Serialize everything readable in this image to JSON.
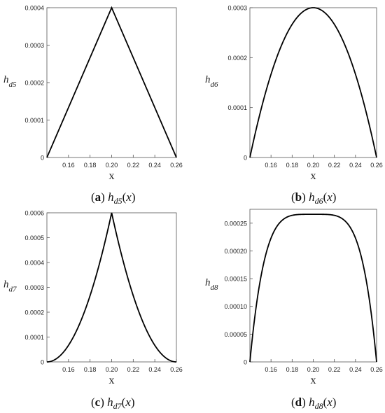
{
  "chart_data": [
    {
      "type": "line",
      "panel_letter": "a",
      "caption": {
        "letter": "(a)",
        "func": "h",
        "sub": "d5",
        "arg": "(x)"
      },
      "ylabel": {
        "main": "h",
        "sub": "d5"
      },
      "xlabel": "x",
      "xlim": [
        0.14,
        0.26
      ],
      "ylim": [
        0,
        0.0004
      ],
      "xticks": [
        "0.16",
        "0.18",
        "0.20",
        "0.22",
        "0.24",
        "0.26"
      ],
      "yticks": [
        "0",
        "0.0001",
        "0.0002",
        "0.0003",
        "0.0004"
      ],
      "shape": "triangle",
      "peak": 0.0004,
      "series": [
        {
          "x": [
            0.14,
            0.2,
            0.26
          ],
          "y": [
            0,
            0.0004,
            0
          ]
        }
      ]
    },
    {
      "type": "line",
      "panel_letter": "b",
      "caption": {
        "letter": "(b)",
        "func": "h",
        "sub": "d6",
        "arg": "(x)"
      },
      "ylabel": {
        "main": "h",
        "sub": "d6"
      },
      "xlabel": "x",
      "xlim": [
        0.14,
        0.26
      ],
      "ylim": [
        0,
        0.0003
      ],
      "xticks": [
        "0.16",
        "0.18",
        "0.20",
        "0.22",
        "0.24",
        "0.26"
      ],
      "yticks": [
        "0",
        "0.0001",
        "0.0002",
        "0.0003"
      ],
      "shape": "parabola",
      "peak": 0.0003,
      "series": [
        {
          "x": [
            0.14,
            0.17,
            0.2,
            0.23,
            0.26
          ],
          "y": [
            0,
            0.000225,
            0.0003,
            0.000225,
            0
          ]
        }
      ]
    },
    {
      "type": "line",
      "panel_letter": "c",
      "caption": {
        "letter": "(c)",
        "func": "h",
        "sub": "d7",
        "arg": "(x)"
      },
      "ylabel": {
        "main": "h",
        "sub": "d7"
      },
      "xlabel": "x",
      "xlim": [
        0.14,
        0.26
      ],
      "ylim": [
        0,
        0.0006
      ],
      "xticks": [
        "0.16",
        "0.18",
        "0.20",
        "0.22",
        "0.24",
        "0.26"
      ],
      "yticks": [
        "0",
        "0.0001",
        "0.0002",
        "0.0003",
        "0.0004",
        "0.0005",
        "0.0006"
      ],
      "shape": "cusp",
      "peak": 0.0006,
      "series": [
        {
          "x": [
            0.14,
            0.17,
            0.2,
            0.23,
            0.26
          ],
          "y": [
            0,
            0.00015,
            0.0006,
            0.00015,
            0
          ]
        }
      ]
    },
    {
      "type": "line",
      "panel_letter": "d",
      "caption": {
        "letter": "(d)",
        "func": "h",
        "sub": "d8",
        "arg": "(x)"
      },
      "ylabel": {
        "main": "h",
        "sub": "d8"
      },
      "xlabel": "x",
      "xlim": [
        0.14,
        0.26
      ],
      "ylim": [
        0,
        0.000275
      ],
      "xticks": [
        "0.16",
        "0.18",
        "0.20",
        "0.22",
        "0.24",
        "0.26"
      ],
      "yticks": [
        "0",
        "0.00005",
        "0.00010",
        "0.00015",
        "0.00020",
        "0.00025"
      ],
      "shape": "flat-top",
      "peak": 0.000266,
      "series": [
        {
          "x": [
            0.14,
            0.17,
            0.2,
            0.23,
            0.26
          ],
          "y": [
            0,
            0.00025,
            0.000266,
            0.00025,
            0
          ]
        }
      ]
    }
  ]
}
